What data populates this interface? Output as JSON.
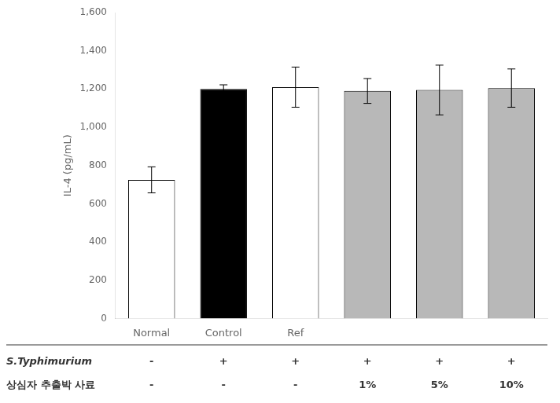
{
  "chart_data": {
    "type": "bar",
    "categories": [
      "Normal",
      "Control",
      "Ref",
      null,
      null,
      null
    ],
    "values": [
      725,
      1200,
      1210,
      1190,
      1195,
      1205
    ],
    "errors": [
      68,
      22,
      105,
      65,
      130,
      100
    ],
    "colors": [
      "white",
      "black",
      "white",
      "#b8b8b8",
      "#b8b8b8",
      "#b8b8b8"
    ],
    "y_label": "IL-4 (pg/mL)",
    "ylim": [
      0,
      1600
    ],
    "yticks": [
      0,
      200,
      400,
      600,
      800,
      1000,
      1200,
      1400,
      1600
    ],
    "grid": false,
    "annotations": [
      {
        "label": "S.Typhimurium",
        "texts": [
          "-",
          "+",
          "+",
          "+",
          "+",
          "+"
        ]
      },
      {
        "label": "상심자 추출박 사료",
        "texts": [
          "-",
          "-",
          "-",
          "1%",
          "5%",
          "10%"
        ]
      }
    ]
  }
}
